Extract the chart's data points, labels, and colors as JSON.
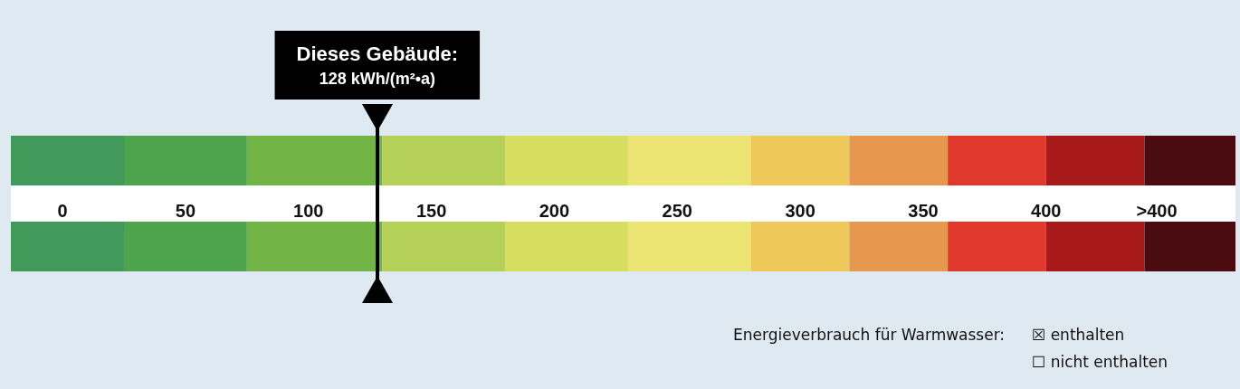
{
  "chart_data": {
    "type": "bar",
    "orientation": "horizontal",
    "categories": [
      null,
      null
    ],
    "series": [
      {
        "color": "#41995a",
        "base": [
          -21,
          -21
        ],
        "values": [
          46,
          46
        ]
      },
      {
        "color": "#4ea44c",
        "base": [
          25,
          25
        ],
        "values": [
          50,
          50
        ]
      },
      {
        "color": "#72b446",
        "base": [
          75,
          75
        ],
        "values": [
          55,
          55
        ]
      },
      {
        "color": "#b4d056",
        "base": [
          130,
          130
        ],
        "values": [
          50,
          50
        ]
      },
      {
        "color": "#d6de60",
        "base": [
          180,
          180
        ],
        "values": [
          50,
          50
        ]
      },
      {
        "color": "#ece574",
        "base": [
          230,
          230
        ],
        "values": [
          50,
          50
        ]
      },
      {
        "color": "#efc85a",
        "base": [
          280,
          280
        ],
        "values": [
          40,
          40
        ]
      },
      {
        "color": "#e8984e",
        "base": [
          320,
          320
        ],
        "values": [
          40,
          40
        ]
      },
      {
        "color": "#e0382c",
        "base": [
          360,
          360
        ],
        "values": [
          40,
          40
        ]
      },
      {
        "color": "#a81a1a",
        "base": [
          400,
          400
        ],
        "values": [
          40,
          40
        ]
      },
      {
        "color": "#4a0c10",
        "base": [
          440,
          440
        ],
        "values": [
          37,
          37
        ]
      }
    ],
    "xlim": [
      -21,
      477
    ],
    "xticks": [
      0,
      50,
      100,
      150,
      200,
      250,
      300,
      350,
      400,
      {
        "value": 445,
        "label": ">400"
      }
    ],
    "ref_lines": [
      {
        "axis": "x",
        "value": 128,
        "label": "Dieses Gebäude:\n128 kWh/(m²•a)",
        "color": "#000000"
      }
    ],
    "annotations": [
      "Energieverbrauch für Warmwasser:",
      "☒ enthalten",
      "☐ nicht enthalten"
    ]
  }
}
